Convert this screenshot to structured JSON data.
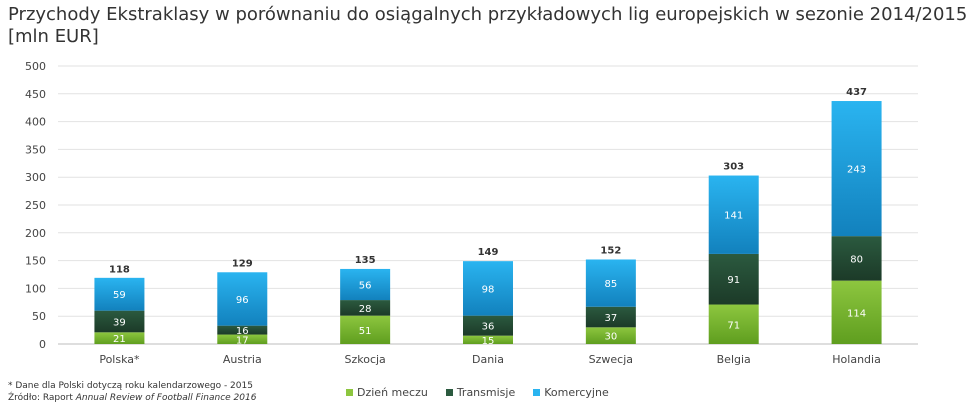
{
  "title": {
    "line1": "Przychody Ekstraklasy w porównaniu do osiągalnych przykładowych lig europejskich w sezonie 2014/2015",
    "line2": "[mln EUR]"
  },
  "footnote": {
    "line1": "* Dane dla Polski dotyczą roku kalendarzowego - 2015",
    "line2_prefix": "Źródło: Raport ",
    "line2_italic": "Annual Review of Football Finance 2016"
  },
  "colors": {
    "matchday_top": "#8dc63f",
    "matchday_bottom": "#5f9e1f",
    "broadcast_top": "#2b5a3f",
    "broadcast_bottom": "#1c3a28",
    "commercial_top": "#2ab4f0",
    "commercial_bottom": "#1281bd",
    "grid": "#e2e2e2"
  },
  "chart_data": {
    "type": "bar",
    "stacked": true,
    "title": "Przychody Ekstraklasy w porównaniu do osiągalnych przykładowych lig europejskich w sezonie 2014/2015 [mln EUR]",
    "categories": [
      "Polska*",
      "Austria",
      "Szkocja",
      "Dania",
      "Szwecja",
      "Belgia",
      "Holandia"
    ],
    "series": [
      {
        "name": "Dzień meczu",
        "values": [
          21,
          17,
          51,
          15,
          30,
          71,
          114
        ]
      },
      {
        "name": "Transmisje",
        "values": [
          39,
          16,
          28,
          36,
          37,
          91,
          80
        ]
      },
      {
        "name": "Komercyjne",
        "values": [
          59,
          96,
          56,
          98,
          85,
          141,
          243
        ]
      }
    ],
    "totals": [
      118,
      129,
      135,
      149,
      152,
      303,
      437
    ],
    "ylim": [
      0,
      500
    ],
    "yticks": [
      0,
      50,
      100,
      150,
      200,
      250,
      300,
      350,
      400,
      450,
      500
    ],
    "xlabel": "",
    "ylabel": "",
    "grid": true,
    "legend_position": "bottom"
  }
}
